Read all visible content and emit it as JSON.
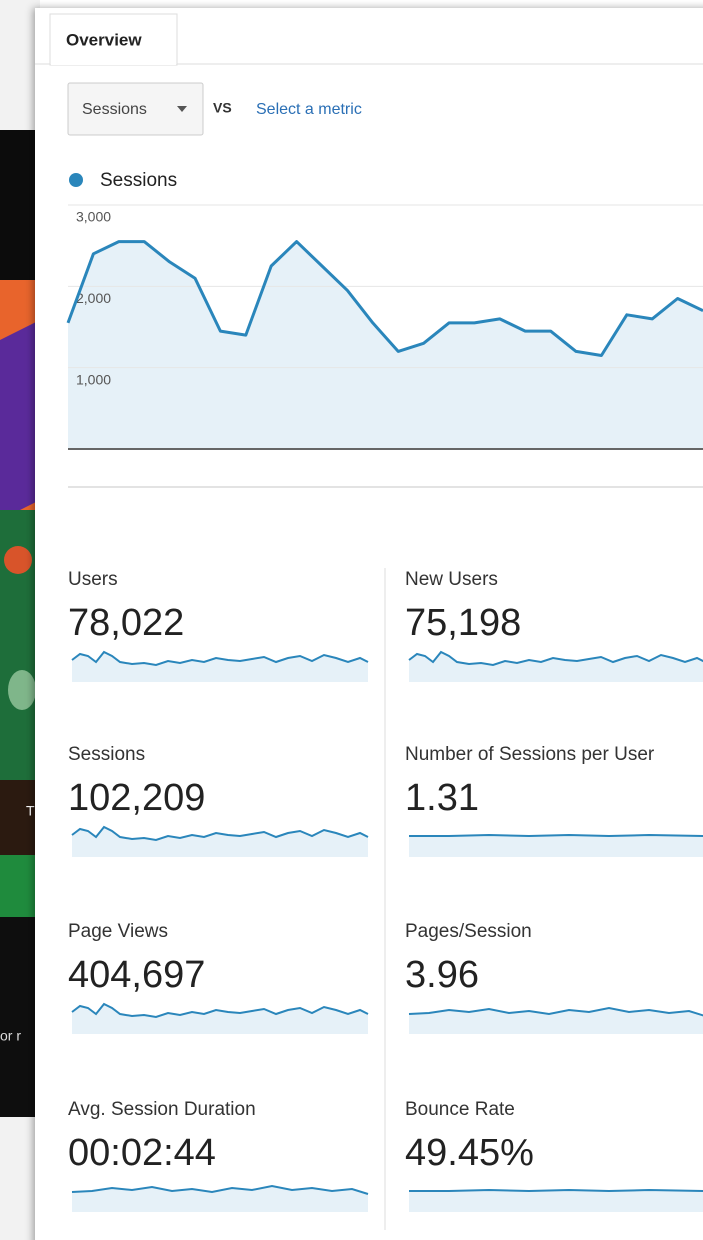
{
  "tab": "Overview",
  "metric_selector": {
    "selected": "Sessions",
    "vs": "VS",
    "placeholder": "Select a metric"
  },
  "chart_data": {
    "type": "line",
    "series": [
      {
        "name": "Sessions",
        "color": "#2a86bb",
        "values": [
          1550,
          2400,
          2550,
          2550,
          2300,
          2100,
          1450,
          1400,
          2250,
          2550,
          2250,
          1950,
          1550,
          1200,
          1300,
          1550,
          1550,
          1600,
          1450,
          1450,
          1200,
          1150,
          1650,
          1600,
          1850,
          1700
        ]
      }
    ],
    "ylim": [
      0,
      3000
    ],
    "yticks": [
      {
        "value": 1000,
        "label": "1,000"
      },
      {
        "value": 2000,
        "label": "2,000"
      },
      {
        "value": 3000,
        "label": "3,000"
      }
    ],
    "grid": true
  },
  "metrics": [
    {
      "label": "Users",
      "value": "78,022"
    },
    {
      "label": "New Users",
      "value": "75,198"
    },
    {
      "label": "Sessions",
      "value": "102,209"
    },
    {
      "label": "Number of Sessions per User",
      "value": "1.31"
    },
    {
      "label": "Page Views",
      "value": "404,697"
    },
    {
      "label": "Pages/Session",
      "value": "3.96"
    },
    {
      "label": "Avg. Session Duration",
      "value": "00:02:44"
    },
    {
      "label": "Bounce Rate",
      "value": "49.45%"
    }
  ],
  "background_text": [
    "T",
    "or r"
  ]
}
